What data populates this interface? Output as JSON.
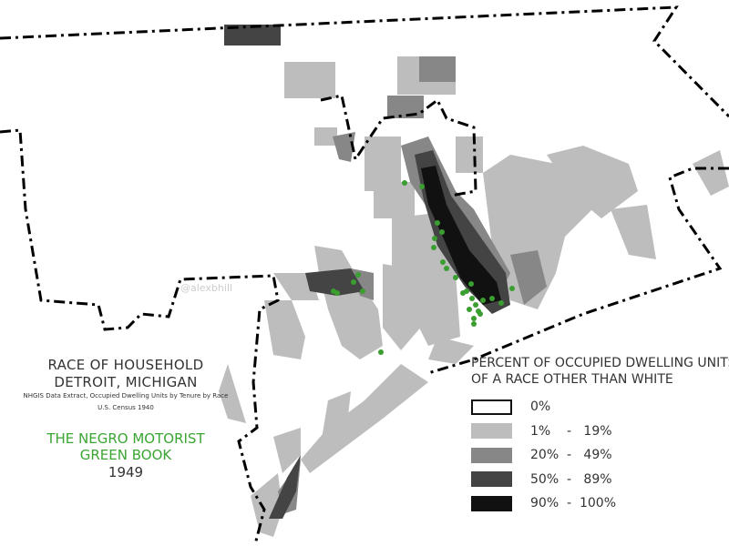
{
  "title": {
    "line1": "RACE OF HOUSEHOLD",
    "line2": "DETROIT, MICHIGAN",
    "source": "NHGIS Data Extract, Occupied Dwelling Units by Tenure by Race",
    "census": "U.S. Census 1940",
    "green_book_line1": "THE NEGRO MOTORIST",
    "green_book_line2": "GREEN BOOK",
    "year": "1949"
  },
  "watermark": "@alexbhill",
  "legend": {
    "title_line1": "PERCENT OF OCCUPIED DWELLING UNITS",
    "title_line2": "OF A RACE OTHER THAN WHITE",
    "items": [
      {
        "label": "0%",
        "color": "#ffffff"
      },
      {
        "label": "1%    -   19%",
        "color": "#bdbdbd"
      },
      {
        "label": "20%  -   49%",
        "color": "#878787"
      },
      {
        "label": "50%  -   89%",
        "color": "#444444"
      },
      {
        "label": "90%  -  100%",
        "color": "#111111"
      }
    ]
  },
  "colors": {
    "green_book_points": "#3a9e30",
    "boundary": "#000000"
  }
}
